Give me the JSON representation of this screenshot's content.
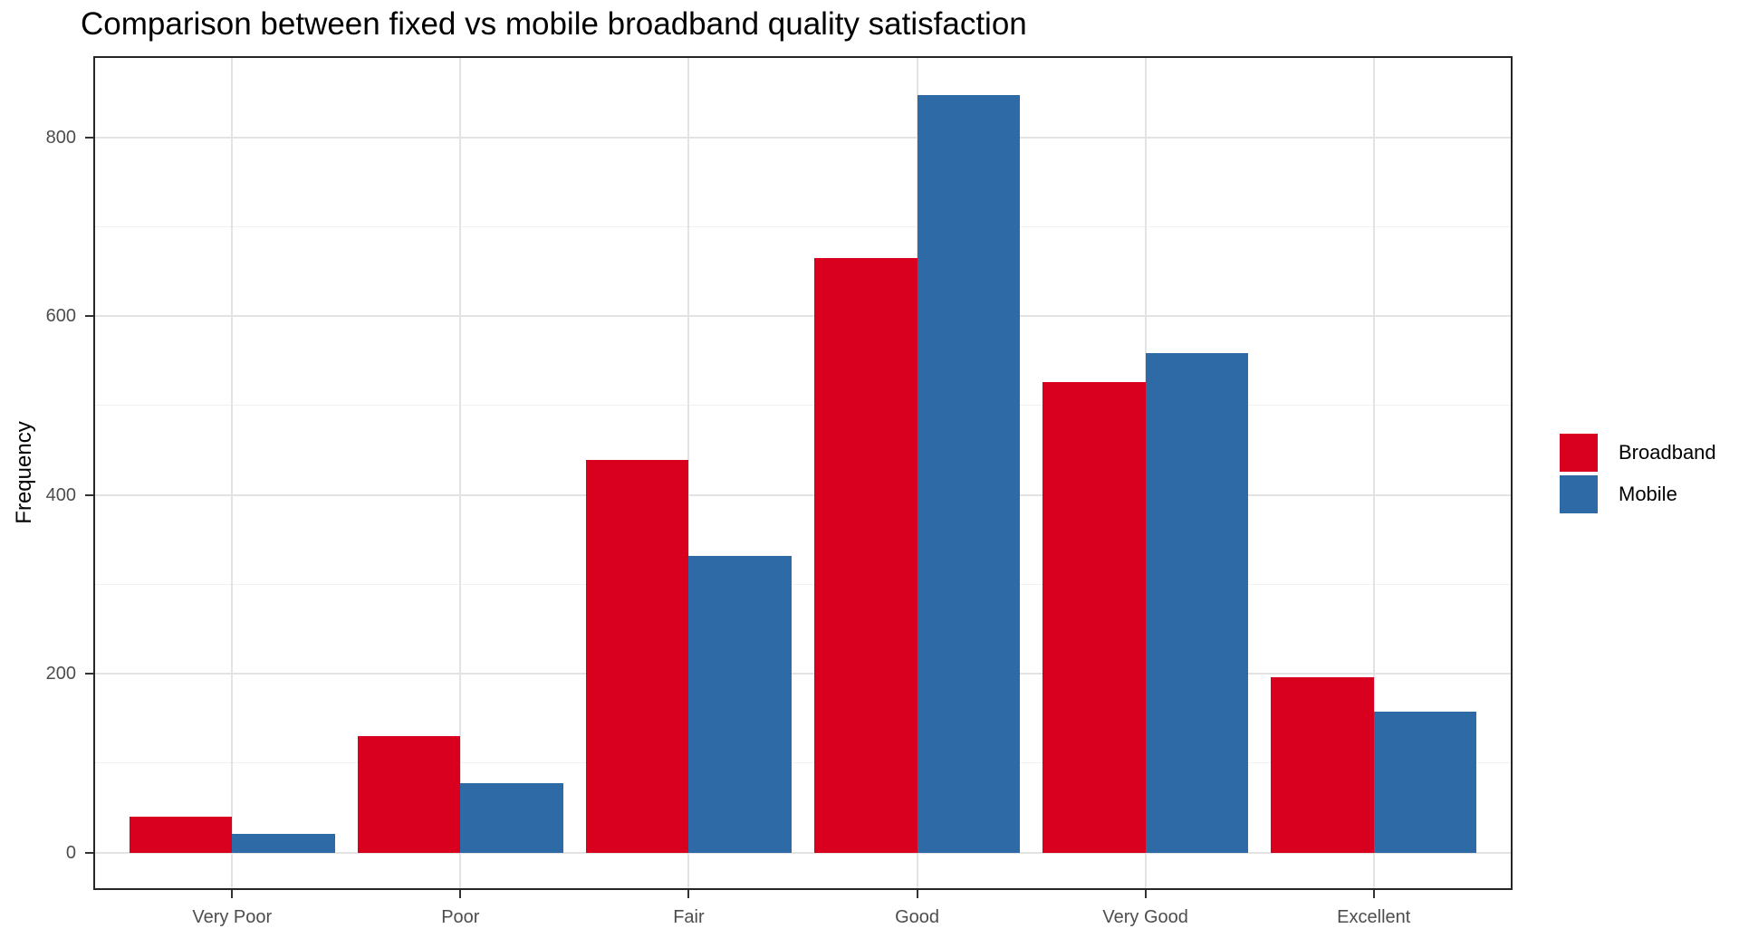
{
  "title": "Comparison between fixed vs mobile broadband quality satisfaction",
  "chart_data": {
    "type": "bar",
    "grouping": "dodged",
    "title": "Comparison between fixed vs mobile broadband quality satisfaction",
    "xlabel": "",
    "ylabel": "Frequency",
    "categories": [
      "Very Poor",
      "Poor",
      "Fair",
      "Good",
      "Very Good",
      "Excellent"
    ],
    "series": [
      {
        "name": "Broadband",
        "color": "#D8001E",
        "values": [
          40,
          130,
          439,
          665,
          526,
          196
        ]
      },
      {
        "name": "Mobile",
        "color": "#2E6BA6",
        "values": [
          21,
          78,
          332,
          847,
          559,
          158
        ]
      }
    ],
    "y_ticks": [
      0,
      200,
      400,
      600,
      800
    ],
    "y_tick_labels": [
      "0",
      "200",
      "400",
      "600",
      "800"
    ],
    "y_minor_ticks": [
      100,
      300,
      500,
      700
    ],
    "ylim": [
      -40,
      889
    ],
    "grid": "horizontal major+minor, vertical major at category centers",
    "legend_position": "right",
    "legend_title": ""
  },
  "legend": {
    "items": [
      {
        "label": "Broadband",
        "color": "#D8001E"
      },
      {
        "label": "Mobile",
        "color": "#2E6BA6"
      }
    ]
  },
  "colors": {
    "bar_broadband": "#D8001E",
    "bar_mobile": "#2E6BA6",
    "grid_major": "#E3E3E3",
    "grid_minor": "#F1F1F1",
    "panel_border": "#262626",
    "tick_text": "#4D4D4D",
    "title_text": "#000000",
    "background": "#FFFFFF"
  }
}
